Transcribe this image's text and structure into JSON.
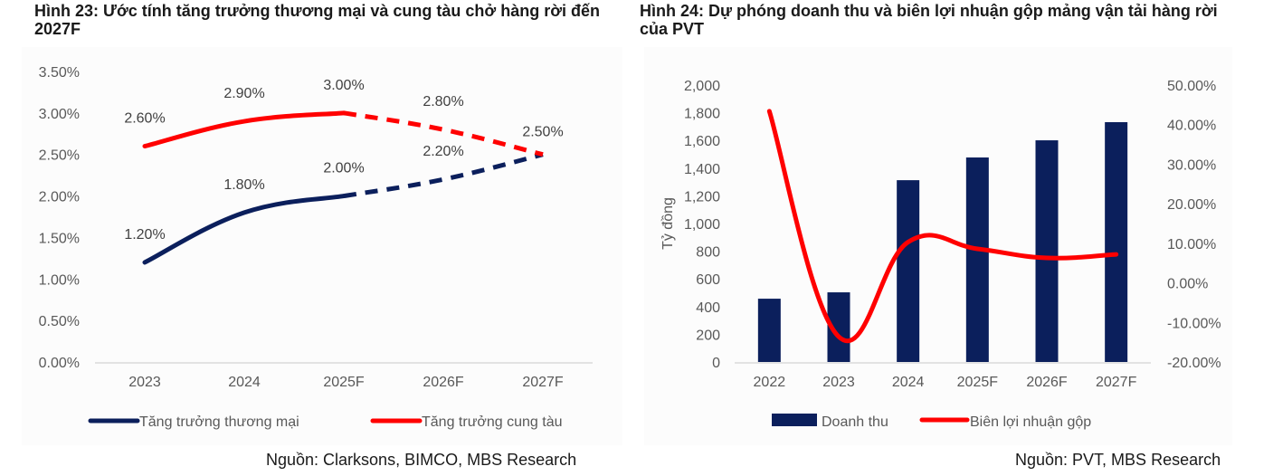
{
  "figures": [
    {
      "title": "Hình 23: Ước tính tăng trưởng thương mại và cung tàu chở hàng rời đến 2027F",
      "source": "Nguồn: Clarksons, BIMCO, MBS Research"
    },
    {
      "title": "Hình 24: Dự phóng doanh thu và biên lợi nhuận gộp mảng vận tải hàng rời của PVT",
      "source": "Nguồn: PVT, MBS Research"
    }
  ],
  "colors": {
    "navy": "#0b1f5c",
    "red": "#ff0000",
    "axis_text": "#595959",
    "label_text": "#404040",
    "grid": "#d9d9d9"
  },
  "chart_data": [
    {
      "type": "line",
      "title": "Hình 23: Ước tính tăng trưởng thương mại và cung tàu chở hàng rời đến 2027F",
      "categories": [
        "2023",
        "2024",
        "2025F",
        "2026F",
        "2027F"
      ],
      "series": [
        {
          "name": "Tăng trưởng thương mại",
          "values": [
            1.2,
            1.8,
            2.0,
            2.2,
            2.5
          ],
          "labels": [
            "1.20%",
            "1.80%",
            "2.00%",
            "2.20%",
            ""
          ],
          "color": "#0b1f5c",
          "dashed_from_index": 2
        },
        {
          "name": "Tăng trưởng cung tàu",
          "values": [
            2.6,
            2.9,
            3.0,
            2.8,
            2.5
          ],
          "labels": [
            "2.60%",
            "2.90%",
            "3.00%",
            "2.80%",
            "2.50%"
          ],
          "color": "#ff0000",
          "dashed_from_index": 2
        }
      ],
      "yticks": [
        "0.00%",
        "0.50%",
        "1.00%",
        "1.50%",
        "2.00%",
        "2.50%",
        "3.00%",
        "3.50%"
      ],
      "ylim": [
        0,
        3.5
      ],
      "xlabel": "",
      "ylabel": "",
      "legend": "bottom",
      "grid": false
    },
    {
      "type": "bar",
      "title": "Hình 24: Dự phóng doanh thu và biên lợi nhuận gộp mảng vận tải hàng rời của PVT",
      "categories": [
        "2022",
        "2023",
        "2024",
        "2025F",
        "2026F",
        "2027F"
      ],
      "series": [
        {
          "name": "Doanh thu",
          "type": "bar",
          "axis": "left",
          "values": [
            457,
            503,
            1313,
            1477,
            1601,
            1732
          ],
          "color": "#0b1f5c"
        },
        {
          "name": "Biên lợi nhuận gộp",
          "type": "line",
          "axis": "right",
          "values": [
            43.4,
            -13.6,
            10.3,
            8.6,
            6.3,
            7.2
          ],
          "color": "#ff0000"
        }
      ],
      "ylabel": "Tỷ đồng",
      "yticks_left": [
        "0",
        "200",
        "400",
        "600",
        "800",
        "1,000",
        "1,200",
        "1,400",
        "1,600",
        "1,800",
        "2,000"
      ],
      "ylim_left": [
        0,
        2000
      ],
      "yticks_right": [
        "-20.00%",
        "-10.00%",
        "0.00%",
        "10.00%",
        "20.00%",
        "30.00%",
        "40.00%",
        "50.00%"
      ],
      "ylim_right": [
        -20,
        50
      ],
      "legend": "bottom",
      "grid": false
    }
  ]
}
